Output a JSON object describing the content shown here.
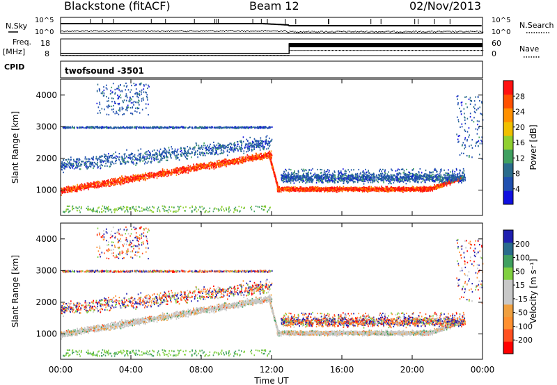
{
  "header": {
    "station": "Blackstone (fitACF)",
    "beam": "Beam 12",
    "date": "02/Nov/2013"
  },
  "panels": {
    "nsky_label": "N.Sky",
    "nsearch_label": "N.Search",
    "nsky_ticks": [
      "10^5",
      "10^0"
    ],
    "nsearch_ticks": [
      "10^5",
      "10^0"
    ],
    "freq_label": "Freq.",
    "freq_unit": "[MHz]",
    "freq_ticks": [
      "18",
      "8"
    ],
    "nave_label": "Nave",
    "nave_ticks": [
      "60",
      "0"
    ],
    "cpid_label": "CPID",
    "cpid_value": "twofsound  -3501"
  },
  "chart_data": [
    {
      "type": "heatmap",
      "name": "power",
      "xlabel": "",
      "ylabel": "Slant Range [km]",
      "x_range_hours": [
        0,
        24
      ],
      "ylim": [
        200,
        4500
      ],
      "yticks": [
        "1000",
        "2000",
        "3000",
        "4000"
      ],
      "colorbar": {
        "label": "Power [dB]",
        "ticks": [
          "28",
          "24",
          "20",
          "16",
          "12",
          "8",
          "4"
        ],
        "range": [
          0,
          32
        ],
        "colors": [
          "#1010e0",
          "#2050b0",
          "#2a6c8c",
          "#40a060",
          "#90d030",
          "#f0c000",
          "#ff9000",
          "#ff5000",
          "#ff1010"
        ]
      },
      "features": [
        {
          "x_start": 0,
          "x_end": 12,
          "y_start": 1000,
          "y_end": 2200,
          "description": "ascending red ground-scatter band"
        },
        {
          "x_start": 12.5,
          "x_end": 23,
          "y": 1050,
          "description": "strong red band near 1000 km"
        },
        {
          "x_start": 0,
          "x_end": 12,
          "y": 3000,
          "description": "sparse blue scatter near 3000 km"
        }
      ]
    },
    {
      "type": "heatmap",
      "name": "velocity",
      "xlabel": "Time UT",
      "ylabel": "Slant Range [km]",
      "x_range_hours": [
        0,
        24
      ],
      "xticks": [
        "00:00",
        "04:00",
        "08:00",
        "12:00",
        "16:00",
        "20:00",
        "00:00"
      ],
      "ylim": [
        200,
        4500
      ],
      "yticks": [
        "1000",
        "2000",
        "3000",
        "4000"
      ],
      "colorbar": {
        "label": "Velocity [m s⁻¹]",
        "ticks": [
          "200",
          "100",
          "50",
          "15",
          "-15",
          "-50",
          "-100",
          "-200"
        ],
        "range": [
          -250,
          250
        ],
        "colors": [
          "#ff0000",
          "#ff5020",
          "#ff9030",
          "#f0a040",
          "#c8c8c8",
          "#c8c8c8",
          "#80d040",
          "#40a060",
          "#2a6c8c",
          "#2020b0"
        ]
      }
    }
  ]
}
